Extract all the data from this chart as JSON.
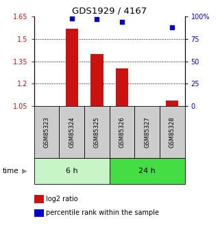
{
  "title": "GDS1929 / 4167",
  "samples": [
    "GSM85323",
    "GSM85324",
    "GSM85325",
    "GSM85326",
    "GSM85327",
    "GSM85328"
  ],
  "log2_ratio": [
    null,
    1.57,
    1.4,
    1.305,
    null,
    1.09
  ],
  "percentile_rank": [
    null,
    98,
    97,
    94,
    null,
    88
  ],
  "ylim_left": [
    1.05,
    1.65
  ],
  "ylim_right": [
    0,
    100
  ],
  "yticks_left": [
    1.05,
    1.2,
    1.35,
    1.5,
    1.65
  ],
  "yticks_right": [
    0,
    25,
    50,
    75,
    100
  ],
  "ytick_labels_left": [
    "1.05",
    "1.2",
    "1.35",
    "1.5",
    "1.65"
  ],
  "ytick_labels_right": [
    "0",
    "25",
    "50",
    "75",
    "100%"
  ],
  "group_labels": [
    "6 h",
    "24 h"
  ],
  "group_ranges": [
    [
      0,
      3
    ],
    [
      3,
      6
    ]
  ],
  "group_colors": [
    "#c8f5c8",
    "#44dd44"
  ],
  "bar_color": "#cc1111",
  "dot_color": "#0000cc",
  "sample_box_color": "#cccccc",
  "legend_bar_label": "log2 ratio",
  "legend_dot_label": "percentile rank within the sample",
  "time_label": "time",
  "bar_width": 0.5,
  "dot_size": 25
}
